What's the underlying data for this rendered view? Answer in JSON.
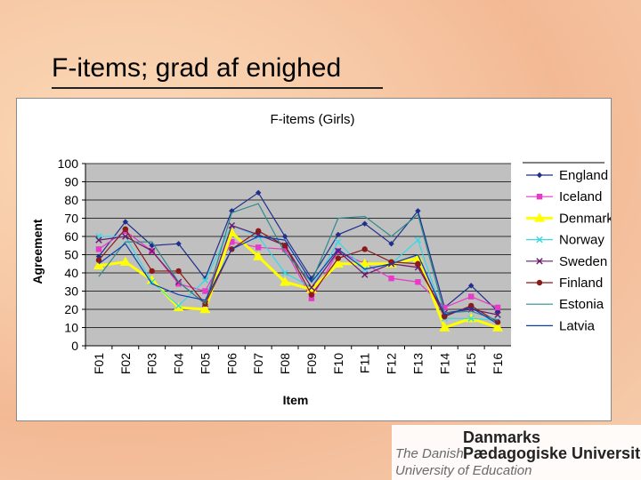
{
  "slide": {
    "title": "F-items; grad af enighed"
  },
  "logo": {
    "line1_small": "The Danish",
    "line1_big": "Danmarks",
    "line2_big": "Pædagogiske Universitet",
    "line3_small": "University of Education"
  },
  "chart_data": {
    "type": "line",
    "title": "F-items (Girls)",
    "xlabel": "Item",
    "ylabel": "Agreement",
    "categories": [
      "F01",
      "F02",
      "F03",
      "F04",
      "F05",
      "F06",
      "F07",
      "F08",
      "F09",
      "F10",
      "F11",
      "F12",
      "F13",
      "F14",
      "F15",
      "F16"
    ],
    "ylim": [
      0,
      100
    ],
    "yticks": [
      0,
      10,
      20,
      30,
      40,
      50,
      60,
      70,
      80,
      90,
      100
    ],
    "grid": "horizontal",
    "legend_position": "right",
    "series": [
      {
        "name": "England",
        "color": "#1f2f8c",
        "marker": "diamond",
        "values": [
          49,
          68,
          55,
          56,
          37,
          74,
          84,
          60,
          37,
          61,
          67,
          56,
          74,
          21,
          33,
          19
        ]
      },
      {
        "name": "Iceland",
        "color": "#e83ac8",
        "marker": "square",
        "values": [
          53,
          63,
          52,
          34,
          30,
          57,
          54,
          53,
          26,
          52,
          45,
          37,
          35,
          21,
          27,
          21
        ]
      },
      {
        "name": "Denmark",
        "color": "#ffff00",
        "marker": "triangle",
        "values": [
          44,
          46,
          36,
          21,
          20,
          62,
          49,
          35,
          31,
          45,
          45,
          45,
          48,
          10,
          15,
          10
        ]
      },
      {
        "name": "Norway",
        "color": "#38d8e6",
        "marker": "x",
        "values": [
          60,
          60,
          35,
          22,
          36,
          66,
          60,
          40,
          32,
          57,
          42,
          45,
          58,
          15,
          15,
          14
        ]
      },
      {
        "name": "Sweden",
        "color": "#6a1a6a",
        "marker": "x",
        "values": [
          58,
          60,
          52,
          35,
          23,
          66,
          61,
          55,
          32,
          52,
          39,
          45,
          43,
          18,
          20,
          17
        ]
      },
      {
        "name": "Finland",
        "color": "#8b1a1a",
        "marker": "circle",
        "values": [
          47,
          64,
          41,
          41,
          23,
          53,
          63,
          55,
          28,
          48,
          53,
          46,
          45,
          16,
          22,
          13
        ]
      },
      {
        "name": "Estonia",
        "color": "#2e8b8b",
        "marker": "none",
        "values": [
          38,
          57,
          57,
          35,
          23,
          73,
          78,
          51,
          35,
          70,
          71,
          60,
          72,
          18,
          19,
          14
        ]
      },
      {
        "name": "Latvia",
        "color": "#0a3fb0",
        "marker": "none",
        "values": [
          45,
          56,
          34,
          28,
          25,
          53,
          60,
          58,
          35,
          53,
          42,
          45,
          50,
          17,
          21,
          12
        ]
      }
    ]
  }
}
